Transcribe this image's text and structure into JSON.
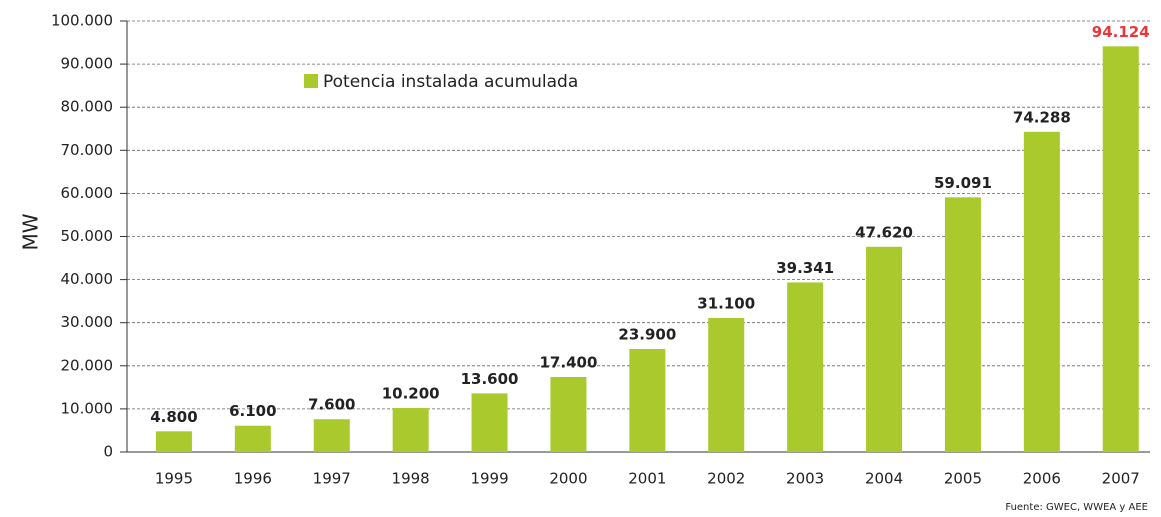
{
  "chart_data": {
    "type": "bar",
    "y_label": "MW",
    "source": "Fuente: GWEC, WWEA y AEE",
    "categories": [
      "1995",
      "1996",
      "1997",
      "1998",
      "1999",
      "2000",
      "2001",
      "2002",
      "2003",
      "2004",
      "2005",
      "2006",
      "2007"
    ],
    "series": [
      {
        "name": "Potencia instalada acumulada",
        "color": "#a9c92c",
        "values": [
          4800,
          6100,
          7600,
          10200,
          13600,
          17400,
          23900,
          31100,
          39341,
          47620,
          59091,
          74288,
          94124
        ],
        "value_labels": [
          "4.800",
          "6.100",
          "7.600",
          "10.200",
          "13.600",
          "17.400",
          "23.900",
          "31.100",
          "39.341",
          "47.620",
          "59.091",
          "74.288",
          "94.124"
        ],
        "value_label_colors": [
          "#222",
          "#222",
          "#222",
          "#222",
          "#222",
          "#222",
          "#222",
          "#222",
          "#222",
          "#222",
          "#222",
          "#222",
          "#e8373a"
        ]
      }
    ],
    "ylim": [
      0,
      100000
    ],
    "yticks": [
      0,
      {
        "value": 10000,
        "label": "10.000"
      },
      {
        "value": 20000,
        "label": "20.000"
      },
      {
        "value": 30000,
        "label": "30.000"
      },
      {
        "value": 40000,
        "label": "40.000"
      },
      {
        "value": 50000,
        "label": "50.000"
      },
      {
        "value": 60000,
        "label": "60.000"
      },
      {
        "value": 70000,
        "label": "70.000"
      },
      {
        "value": 80000,
        "label": "80.000"
      },
      {
        "value": 90000,
        "label": "90.000"
      },
      {
        "value": 100000,
        "label": "100.000"
      }
    ],
    "grid": true
  }
}
